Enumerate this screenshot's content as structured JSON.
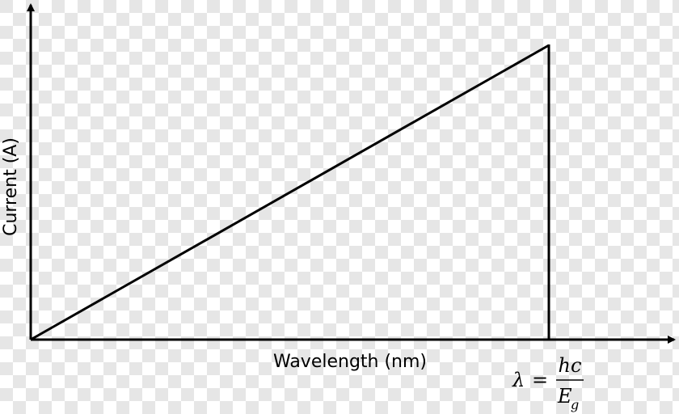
{
  "axes": {
    "y_label": "Current (A)",
    "x_label": "Wavelength (nm)"
  },
  "cutoff_label": {
    "lhs": "λ",
    "equals": "=",
    "numerator": "hc",
    "denominator_base": "E",
    "denominator_subscript": "g"
  }
}
